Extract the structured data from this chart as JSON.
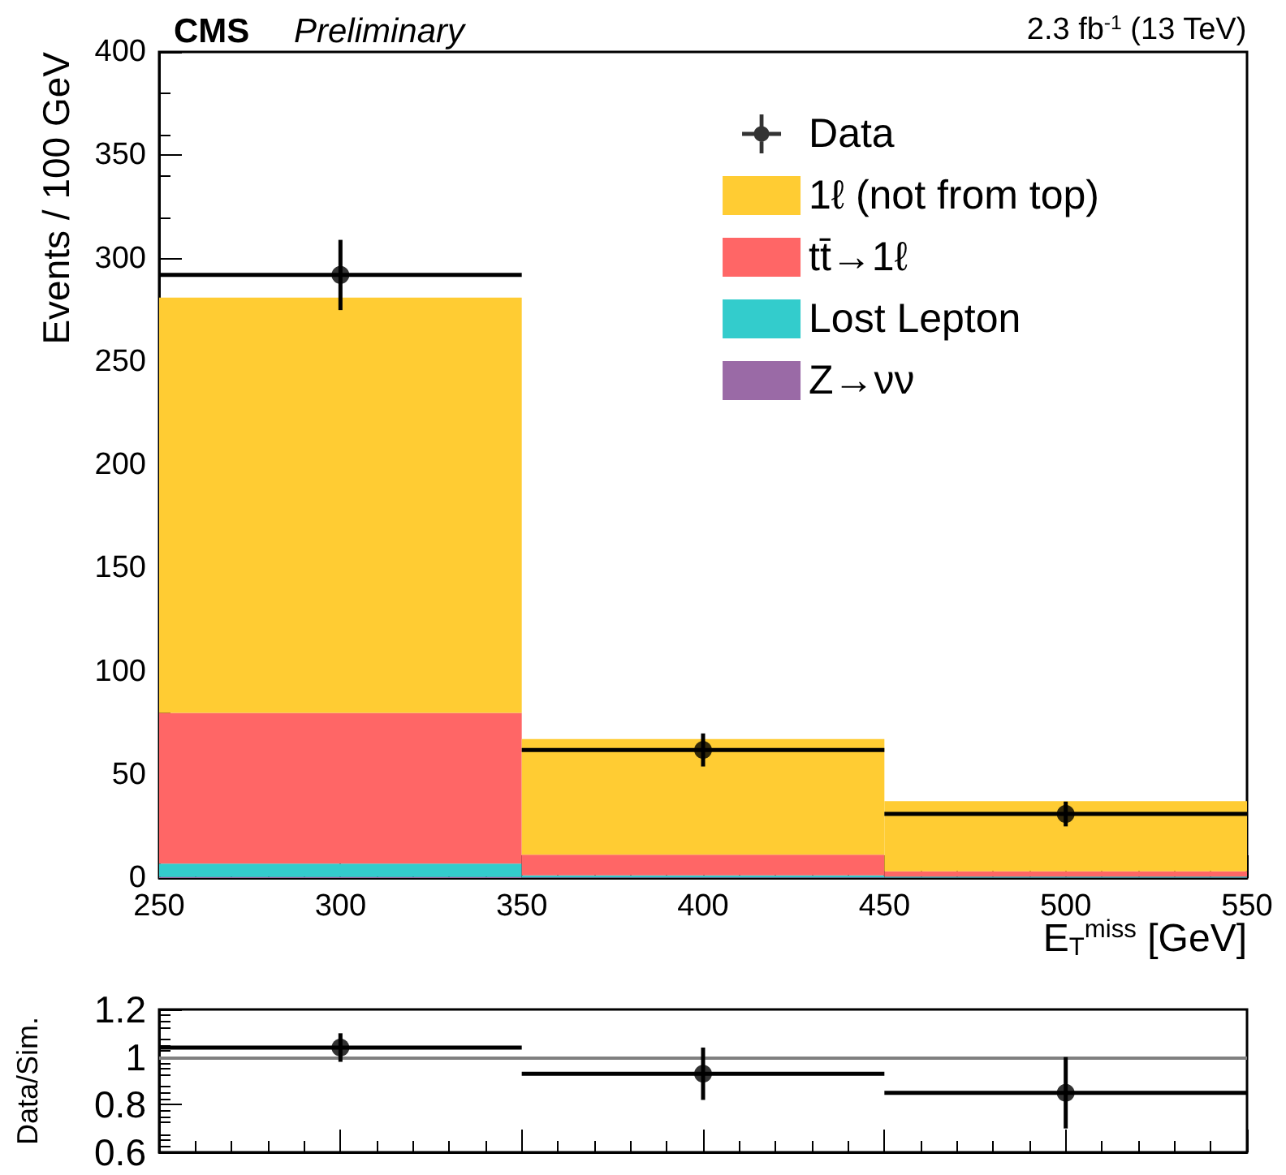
{
  "chart_data": [
    {
      "type": "bar",
      "title": "CMS",
      "subtitle": "Preliminary",
      "annotations": [
        "2.3 fb$^{-1}$ (13 TeV)"
      ],
      "xlabel": "E$_{T}$$^{miss}$ [GeV]",
      "ylabel": "Events / 100 GeV",
      "x": [
        300,
        400,
        500
      ],
      "stacked": true,
      "series": [
        {
          "name": "Z→νν",
          "color": "#9a6aa6",
          "values": [
            0.5,
            0.3,
            0.2
          ]
        },
        {
          "name": "Lost Lepton",
          "color": "#33cccc",
          "values": [
            6.5,
            1,
            0.5
          ]
        },
        {
          "name": "tt̄→1ℓ",
          "color": "#ff6666",
          "values": [
            73,
            10,
            2.5
          ]
        },
        {
          "name": "1ℓ (not from top)",
          "color": "#ffcc33",
          "values": [
            201,
            56,
            34
          ]
        },
        {
          "name": "Data",
          "type": "scatter",
          "color": "#000000",
          "values": [
            292,
            62,
            31
          ],
          "errors": [
            17,
            8,
            6
          ],
          "xerrors": [
            50,
            50,
            50
          ]
        }
      ],
      "xlim": [
        250,
        550
      ],
      "xticks": [
        250,
        300,
        350,
        400,
        450,
        500,
        550
      ],
      "ylim": [
        0,
        400
      ],
      "yticks": [
        0,
        50,
        100,
        150,
        200,
        250,
        300,
        350,
        400
      ],
      "legend": "top right",
      "marker": "circle",
      "grid": false
    },
    {
      "type": "scatter",
      "ylabel": "Data/Sim.",
      "x": [
        300,
        400,
        500
      ],
      "values": [
        1.04,
        0.93,
        0.85
      ],
      "errors": [
        0.06,
        0.11,
        0.15
      ],
      "xerrors": [
        50,
        50,
        50
      ],
      "color": "#000000",
      "xlim": [
        250,
        550
      ],
      "xticks": [
        250,
        300,
        350,
        400,
        450,
        500,
        550
      ],
      "ylim": [
        0.6,
        1.2
      ],
      "yticks": [
        0.6,
        0.8,
        {
          "value": 1,
          "label": "1"
        },
        1.2
      ],
      "tick_labels": "y",
      "ref_lines": [
        {
          "axis": "y",
          "value": 1,
          "color": "#808080"
        }
      ],
      "marker": "circle",
      "grid": false
    }
  ]
}
